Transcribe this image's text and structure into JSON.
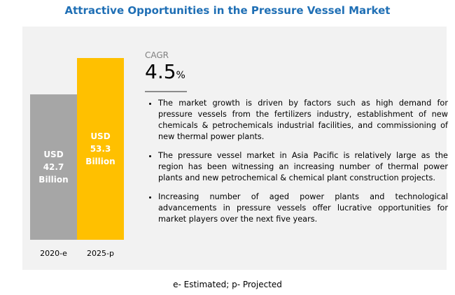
{
  "chart_data": {
    "type": "bar",
    "title": "Attractive Opportunities in the Pressure Vessel Market",
    "categories": [
      "2020-e",
      "2025-p"
    ],
    "values": [
      42.7,
      53.3
    ],
    "value_labels": [
      "USD 42.7 Billion",
      "USD 53.3 Billion"
    ],
    "colors": [
      "#a6a6a6",
      "#ffc000"
    ]
  },
  "cagr": {
    "label": "CAGR",
    "value": "4.5",
    "unit": "%"
  },
  "bullets": [
    "The market growth is driven by factors such as high demand for pressure vessels from the fertilizers industry, establishment of new chemicals & petrochemicals industrial facilities, and commissioning of new thermal power plants.",
    "The pressure vessel market in Asia Pacific is relatively large as the region has been witnessing an increasing number of thermal power plants and new petrochemical & chemical plant construction projects.",
    "Increasing number of aged power plants and technological advancements in pressure vessels offer lucrative opportunities for market players over the next five years."
  ],
  "footnote": "e- Estimated; p- Projected"
}
